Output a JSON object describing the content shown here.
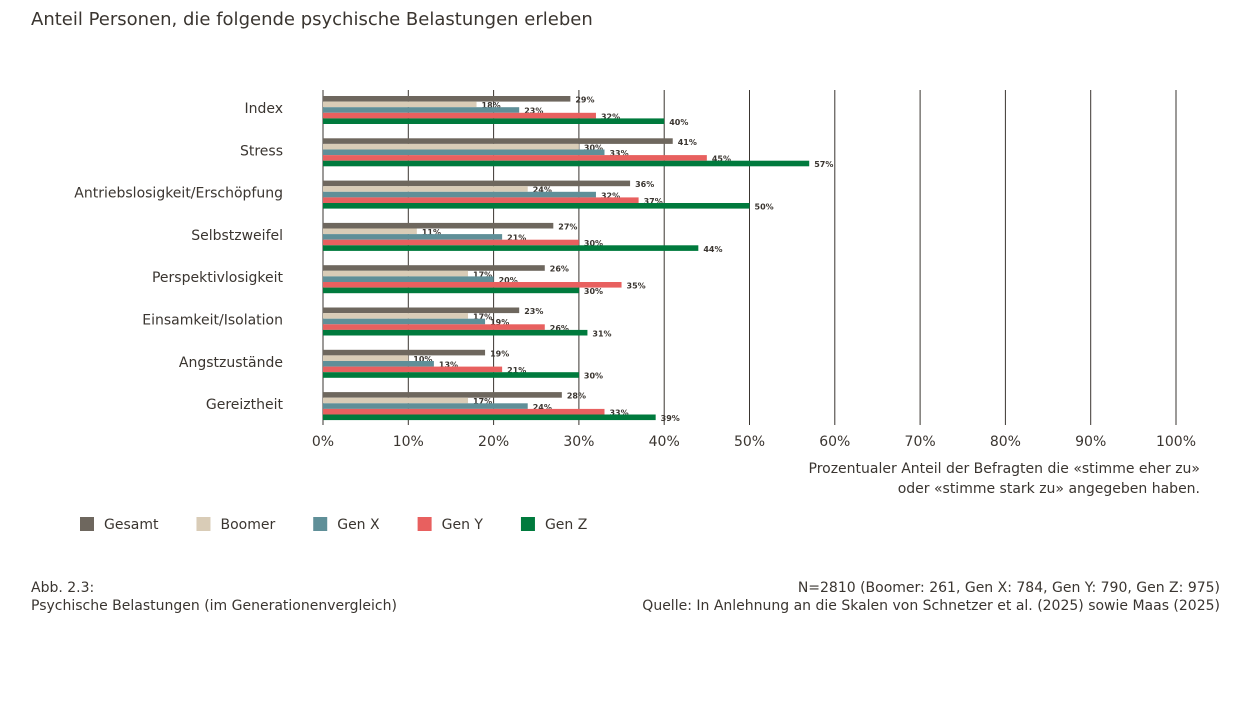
{
  "chart_data": {
    "type": "bar",
    "orientation": "horizontal",
    "title": "Anteil Personen, die folgende psychische Belastungen erleben",
    "categories": [
      "Index",
      "Stress",
      "Antriebslosigkeit/Erschöpfung",
      "Selbstzweifel",
      "Perspektivlosigkeit",
      "Einsamkeit/Isolation",
      "Angstzustände",
      "Gereiztheit"
    ],
    "series": [
      {
        "name": "Gesamt",
        "color": "#6e675e",
        "values": [
          29,
          41,
          36,
          27,
          26,
          23,
          19,
          28
        ],
        "value_labels": [
          "29%",
          "41%",
          "36%",
          "27%",
          "26%",
          "23%",
          "19%",
          "28%"
        ]
      },
      {
        "name": "Boomer",
        "color": "#d9ccb7",
        "values": [
          18,
          30,
          24,
          11,
          17,
          17,
          10,
          17
        ],
        "value_labels": [
          "18%",
          "30%",
          "24%",
          "11%",
          "17%",
          "17%",
          "10%",
          "17%"
        ]
      },
      {
        "name": "Gen X",
        "color": "#5f8f98",
        "values": [
          23,
          33,
          32,
          21,
          20,
          19,
          13,
          24
        ],
        "value_labels": [
          "23%",
          "33%",
          "32%",
          "21%",
          "20%",
          "19%",
          "13%",
          "24%"
        ]
      },
      {
        "name": "Gen Y",
        "color": "#e8605f",
        "values": [
          32,
          45,
          37,
          30,
          35,
          26,
          21,
          33
        ],
        "value_labels": [
          "32%",
          "45%",
          "37%",
          "30%",
          "35%",
          "26%",
          "21%",
          "33%"
        ]
      },
      {
        "name": "Gen Z",
        "color": "#007a3d",
        "values": [
          40,
          57,
          50,
          44,
          30,
          31,
          30,
          39
        ],
        "value_labels": [
          "40%",
          "57%",
          "50%",
          "44%",
          "30%",
          "31%",
          "30%",
          "39%"
        ]
      }
    ],
    "xlim": [
      0,
      100
    ],
    "xticks": [
      {
        "value": 0,
        "label": "0%"
      },
      {
        "value": 10,
        "label": "10%"
      },
      {
        "value": 20,
        "label": "20%"
      },
      {
        "value": 30,
        "label": "30%"
      },
      {
        "value": 40,
        "label": "40%"
      },
      {
        "value": 50,
        "label": "50%"
      },
      {
        "value": 60,
        "label": "60%"
      },
      {
        "value": 70,
        "label": "70%"
      },
      {
        "value": 80,
        "label": "80%"
      },
      {
        "value": 90,
        "label": "90%"
      },
      {
        "value": 100,
        "label": "100%"
      }
    ],
    "grid": true,
    "xlabel": [
      "Prozentualer Anteil der Befragten die «stimme eher zu»",
      "oder «stimme stark zu» angegeben haben."
    ],
    "caption": [
      "Abb. 2.3:",
      "Psychische Belastungen (im Generationenvergleich)"
    ],
    "notes": [
      "N=2810 (Boomer: 261, Gen X: 784, Gen Y: 790, Gen Z: 975)",
      "Quelle: In Anlehnung an die Skalen von Schnetzer et al. (2025) sowie Maas (2025)"
    ]
  }
}
